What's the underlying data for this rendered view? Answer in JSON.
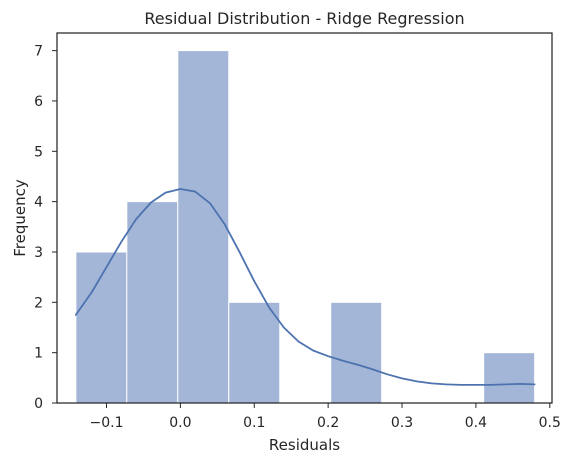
{
  "chart_data": {
    "type": "histogram",
    "title": "Residual Distribution - Ridge Regression",
    "xlabel": "Residuals",
    "ylabel": "Frequency",
    "xlim": [
      -0.167,
      0.503
    ],
    "ylim": [
      0,
      7.35
    ],
    "x_ticks": [
      -0.1,
      0.0,
      0.1,
      0.2,
      0.3,
      0.4,
      0.5
    ],
    "x_tick_labels": [
      "−0.1",
      "0.0",
      "0.1",
      "0.2",
      "0.3",
      "0.4",
      "0.5"
    ],
    "y_ticks": [
      0,
      1,
      2,
      3,
      4,
      5,
      6,
      7
    ],
    "y_tick_labels": [
      "0",
      "1",
      "2",
      "3",
      "4",
      "5",
      "6",
      "7"
    ],
    "bins": [
      {
        "x0": -0.1415,
        "x1": -0.0725,
        "count": 3
      },
      {
        "x0": -0.0725,
        "x1": -0.0035,
        "count": 4
      },
      {
        "x0": -0.0035,
        "x1": 0.0655,
        "count": 7
      },
      {
        "x0": 0.0655,
        "x1": 0.1345,
        "count": 2
      },
      {
        "x0": 0.1345,
        "x1": 0.2035,
        "count": 0
      },
      {
        "x0": 0.2035,
        "x1": 0.2725,
        "count": 2
      },
      {
        "x0": 0.2725,
        "x1": 0.3415,
        "count": 0
      },
      {
        "x0": 0.3415,
        "x1": 0.4105,
        "count": 0
      },
      {
        "x0": 0.4105,
        "x1": 0.4795,
        "count": 1
      }
    ],
    "kde": {
      "x": [
        -0.1415,
        -0.12,
        -0.1,
        -0.08,
        -0.06,
        -0.04,
        -0.02,
        0.0,
        0.02,
        0.04,
        0.06,
        0.08,
        0.1,
        0.12,
        0.14,
        0.16,
        0.18,
        0.2,
        0.22,
        0.24,
        0.26,
        0.28,
        0.3,
        0.32,
        0.34,
        0.36,
        0.38,
        0.4,
        0.42,
        0.44,
        0.46,
        0.4795
      ],
      "y": [
        1.75,
        2.2,
        2.7,
        3.2,
        3.65,
        3.98,
        4.18,
        4.25,
        4.2,
        3.97,
        3.55,
        3.0,
        2.42,
        1.9,
        1.5,
        1.22,
        1.04,
        0.93,
        0.84,
        0.76,
        0.67,
        0.57,
        0.49,
        0.43,
        0.39,
        0.37,
        0.36,
        0.36,
        0.36,
        0.37,
        0.38,
        0.37
      ]
    },
    "bar_color": "#a3b6d7",
    "line_color": "#4c72b0",
    "grid": false,
    "legend": "none"
  }
}
